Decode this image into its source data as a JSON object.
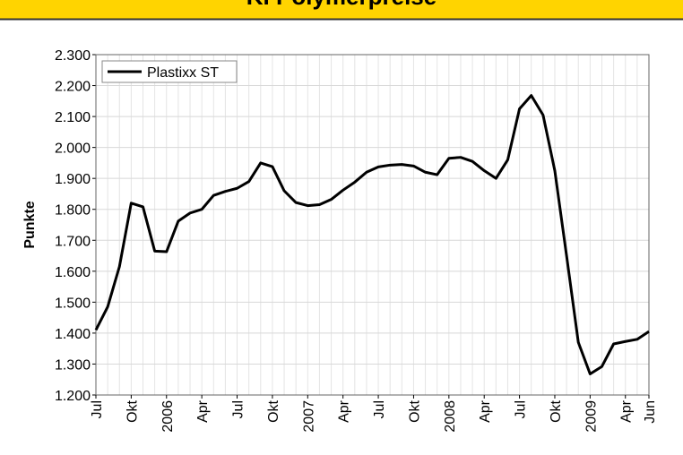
{
  "chart_data": {
    "type": "line",
    "title": "KI Polymerpreise",
    "y_label": "Punkte",
    "categories": [
      "Jul",
      null,
      null,
      "Okt",
      null,
      null,
      "2006",
      null,
      null,
      "Apr",
      null,
      null,
      "Jul",
      null,
      null,
      "Okt",
      null,
      null,
      "2007",
      null,
      null,
      "Apr",
      null,
      null,
      "Jul",
      null,
      null,
      "Okt",
      null,
      null,
      "2008",
      null,
      null,
      "Apr",
      null,
      null,
      "Jul",
      null,
      null,
      "Okt",
      null,
      null,
      "2009",
      null,
      null,
      "Apr",
      null,
      "Jun"
    ],
    "series": [
      {
        "name": "Plastixx ST",
        "color": "#000000",
        "values": [
          1410,
          1485,
          1615,
          1820,
          1808,
          1665,
          1663,
          1762,
          1788,
          1800,
          1845,
          1858,
          1868,
          1890,
          1950,
          1938,
          1860,
          1822,
          1812,
          1815,
          1832,
          1862,
          1888,
          1920,
          1937,
          1943,
          1945,
          1940,
          1920,
          1912,
          1965,
          1968,
          1955,
          1925,
          1900,
          1960,
          2125,
          2168,
          2105,
          1925,
          1650,
          1370,
          1268,
          1292,
          1365,
          1373,
          1380,
          1405
        ]
      }
    ],
    "ylim": [
      1200,
      2300
    ],
    "yticks": [
      {
        "value": 1200,
        "label": "1.200"
      },
      {
        "value": 1300,
        "label": "1.300"
      },
      {
        "value": 1400,
        "label": "1.400"
      },
      {
        "value": 1500,
        "label": "1.500"
      },
      {
        "value": 1600,
        "label": "1.600"
      },
      {
        "value": 1700,
        "label": "1.700"
      },
      {
        "value": 1800,
        "label": "1.800"
      },
      {
        "value": 1900,
        "label": "1.900"
      },
      {
        "value": 2000,
        "label": "2.000"
      },
      {
        "value": 2100,
        "label": "2.100"
      },
      {
        "value": 2200,
        "label": "2.200"
      },
      {
        "value": 2300,
        "label": "2.300"
      }
    ],
    "grid": true,
    "legend": "top-left"
  }
}
